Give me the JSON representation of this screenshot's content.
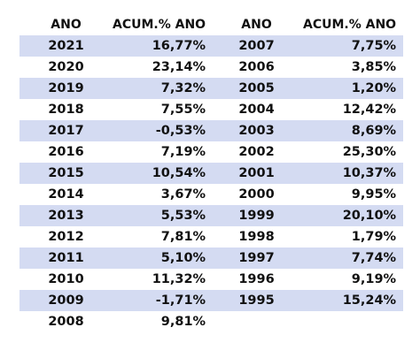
{
  "table": {
    "headers": {
      "year": "ANO",
      "value": "ACUM.% ANO"
    },
    "left": [
      {
        "year": "2021",
        "value": "16,77%"
      },
      {
        "year": "2020",
        "value": "23,14%"
      },
      {
        "year": "2019",
        "value": "7,32%"
      },
      {
        "year": "2018",
        "value": "7,55%"
      },
      {
        "year": "2017",
        "value": "-0,53%"
      },
      {
        "year": "2016",
        "value": "7,19%"
      },
      {
        "year": "2015",
        "value": "10,54%"
      },
      {
        "year": "2014",
        "value": "3,67%"
      },
      {
        "year": "2013",
        "value": "5,53%"
      },
      {
        "year": "2012",
        "value": "7,81%"
      },
      {
        "year": "2011",
        "value": "5,10%"
      },
      {
        "year": "2010",
        "value": "11,32%"
      },
      {
        "year": "2009",
        "value": "-1,71%"
      },
      {
        "year": "2008",
        "value": "9,81%"
      }
    ],
    "right": [
      {
        "year": "2007",
        "value": "7,75%"
      },
      {
        "year": "2006",
        "value": "3,85%"
      },
      {
        "year": "2005",
        "value": "1,20%"
      },
      {
        "year": "2004",
        "value": "12,42%"
      },
      {
        "year": "2003",
        "value": "8,69%"
      },
      {
        "year": "2002",
        "value": "25,30%"
      },
      {
        "year": "2001",
        "value": "10,37%"
      },
      {
        "year": "2000",
        "value": "9,95%"
      },
      {
        "year": "1999",
        "value": "20,10%"
      },
      {
        "year": "1998",
        "value": "1,79%"
      },
      {
        "year": "1997",
        "value": "7,74%"
      },
      {
        "year": "1996",
        "value": "9,19%"
      },
      {
        "year": "1995",
        "value": "15,24%"
      }
    ]
  },
  "colors": {
    "row_shade": "#d4dbf2",
    "row_plain": "#ffffff",
    "text": "#111111"
  }
}
